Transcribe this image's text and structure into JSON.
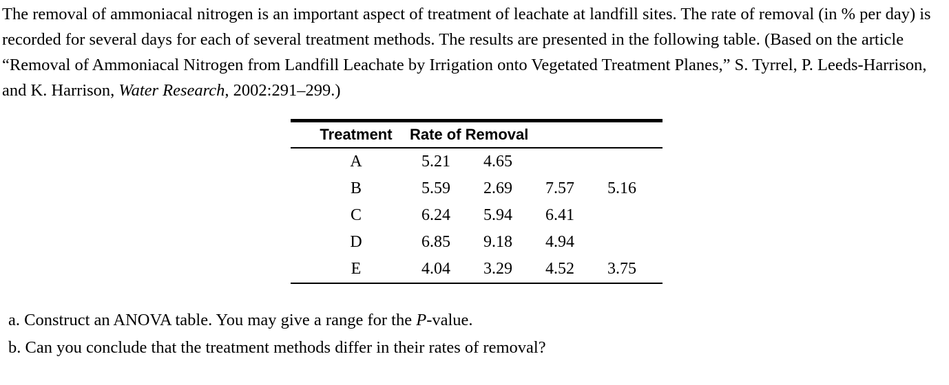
{
  "page": {
    "background": "#ffffff",
    "text_color": "#000000"
  },
  "intro_paragraph": {
    "part1": "The removal of ammoniacal nitrogen is an important aspect of treatment of leachate at landfill sites. The rate of removal (in % per day) is recorded for several days for each of several treatment methods. The results are presented in the following table. (Based on the article “Removal of Ammoniacal Nitrogen from Landfill Leachate by Irrigation onto Vegetated Treatment Planes,” S. Tyrrel, P. Leeds-Harrison, and K. Harrison, ",
    "journal": "Water Research",
    "part2": ", 2002:291–299.)"
  },
  "data_table": {
    "col_header_treatment": "Treatment",
    "col_header_rate": "Rate of Removal",
    "rows": [
      {
        "treatment": "A",
        "values": [
          "5.21",
          "4.65",
          "",
          ""
        ]
      },
      {
        "treatment": "B",
        "values": [
          "5.59",
          "2.69",
          "7.57",
          "5.16"
        ]
      },
      {
        "treatment": "C",
        "values": [
          "6.24",
          "5.94",
          "6.41",
          ""
        ]
      },
      {
        "treatment": "D",
        "values": [
          "6.85",
          "9.18",
          "4.94",
          ""
        ]
      },
      {
        "treatment": "E",
        "values": [
          "4.04",
          "3.29",
          "4.52",
          "3.75"
        ]
      }
    ]
  },
  "questions": {
    "a_label": "a.",
    "a_part1": "Construct an ANOVA table. You may give a range for the ",
    "a_italic": "P",
    "a_part2": "-value.",
    "b_label": "b.",
    "b_text": "Can you conclude that the treatment methods differ in their rates of removal?"
  }
}
